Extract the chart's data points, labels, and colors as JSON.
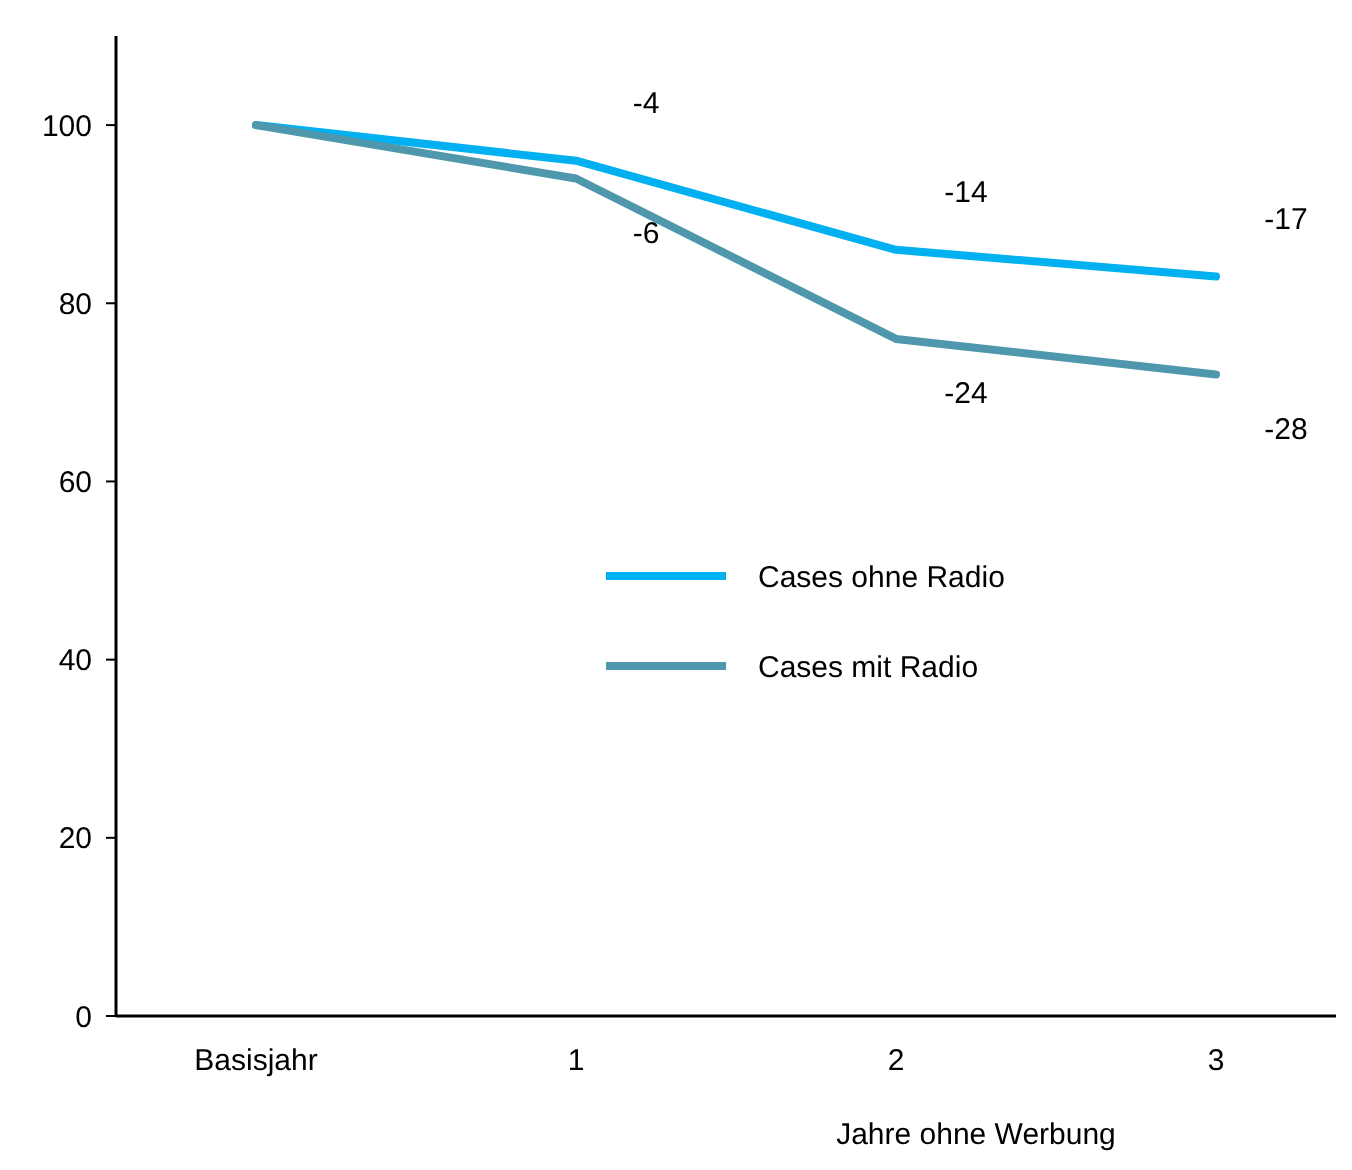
{
  "chart_data": {
    "type": "line",
    "xlabel": "Jahre ohne Werbung",
    "categories": [
      "Basisjahr",
      "1",
      "2",
      "3"
    ],
    "series": [
      {
        "name": "Cases ohne Radio",
        "color": "#00b0f0",
        "values": [
          100,
          96,
          86,
          83
        ]
      },
      {
        "name": "Cases mit Radio",
        "color": "#4f97ad",
        "values": [
          100,
          94,
          76,
          72
        ]
      }
    ],
    "annotations": [
      {
        "text": "-4",
        "x": "1",
        "y": 96
      },
      {
        "text": "-14",
        "x": "2",
        "y": 86
      },
      {
        "text": "-17",
        "x": "3",
        "y": 83
      },
      {
        "text": "-6",
        "x": "1",
        "y": 94
      },
      {
        "text": "-24",
        "x": "2",
        "y": 76
      },
      {
        "text": "-28",
        "x": "3",
        "y": 72
      }
    ],
    "ylim": [
      0,
      110
    ],
    "yticks": [
      0,
      20,
      40,
      60,
      80,
      100
    ],
    "grid": false,
    "legend": "right",
    "marker": "none",
    "line_style": "solid"
  }
}
